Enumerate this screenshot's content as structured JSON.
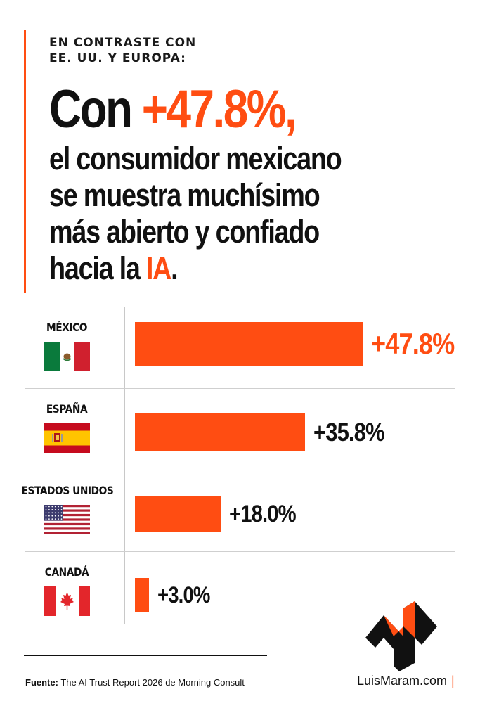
{
  "colors": {
    "accent": "#ff4d12",
    "text": "#111111"
  },
  "kicker": {
    "line1": "EN CONTRASTE CON",
    "line2": "EE. UU. Y EUROPA:"
  },
  "headline": {
    "lead": "Con ",
    "highlight": "+47.8%,",
    "line1": "el consumidor mexicano",
    "line2": "se muestra muchísimo",
    "line3": "más abierto y confiado",
    "line4_pre": "hacia la ",
    "line4_highlight": "IA",
    "line4_post": "."
  },
  "chart_data": {
    "type": "bar",
    "orientation": "horizontal",
    "categories": [
      "MÉXICO",
      "ESPAÑA",
      "ESTADOS UNIDOS",
      "CANADÁ"
    ],
    "values": [
      47.8,
      35.8,
      18.0,
      3.0
    ],
    "value_labels": [
      "+47.8%",
      "+35.8%",
      "+18.0%",
      "+3.0%"
    ],
    "flags": [
      "mexico-flag-icon",
      "spain-flag-icon",
      "usa-flag-icon",
      "canada-flag-icon"
    ],
    "title": "",
    "xlabel": "",
    "ylabel": "",
    "xlim": [
      0,
      48
    ],
    "grid": false,
    "legend": "none"
  },
  "footer": {
    "source_label": "Fuente:",
    "source_text": " The AI Trust Report 2026 de Morning Consult",
    "brand": "LuisMaram.com",
    "brand_pipe": "|"
  }
}
